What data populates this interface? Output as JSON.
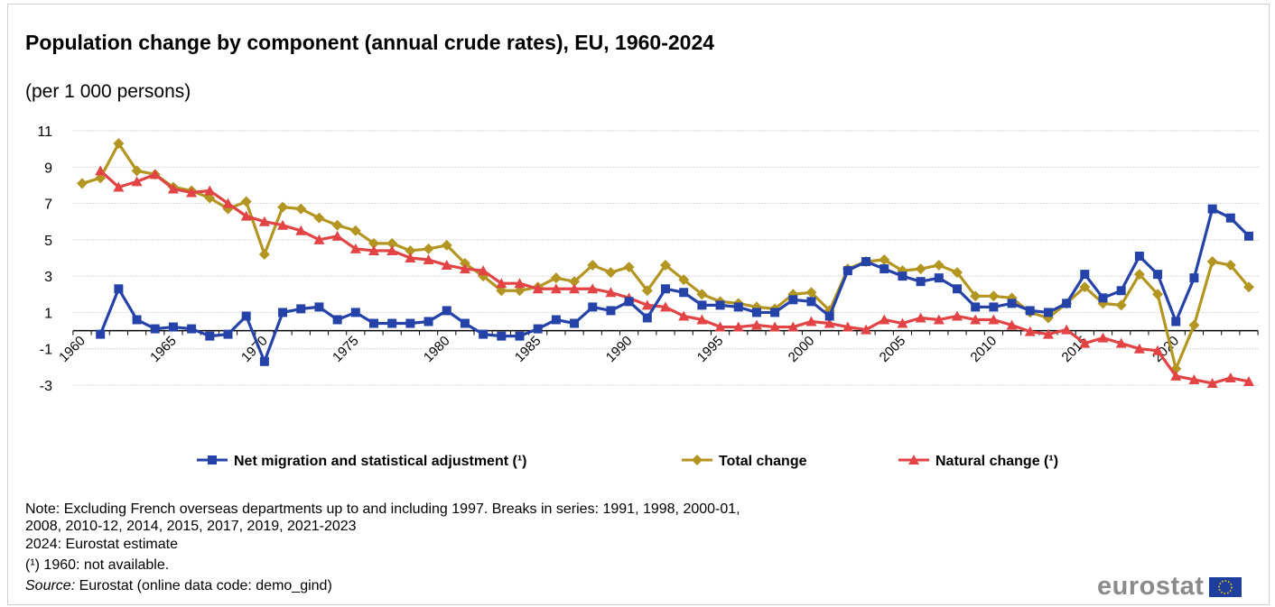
{
  "chart_data": {
    "type": "line",
    "title": "Population change by component (annual crude rates), EU, 1960-2024",
    "subtitle": "(per 1 000 persons)",
    "xlabel": "",
    "ylabel": "",
    "ylim": [
      -3,
      11
    ],
    "yticks": [
      11,
      9,
      7,
      5,
      3,
      1,
      -1,
      -3
    ],
    "xlim": [
      1960,
      2024
    ],
    "xticks": [
      1960,
      1965,
      1970,
      1975,
      1980,
      1985,
      1990,
      1995,
      2000,
      2005,
      2010,
      2015,
      2020
    ],
    "grid": true,
    "legend_position": "bottom",
    "series": [
      {
        "name": "Net migration and statistical adjustment (¹)",
        "color": "#2542a8",
        "marker": "square",
        "start": 1961,
        "values": [
          -0.2,
          2.3,
          0.6,
          0.1,
          0.2,
          0.1,
          -0.3,
          -0.2,
          0.8,
          -1.7,
          1.0,
          1.2,
          1.3,
          0.6,
          1.0,
          0.4,
          0.4,
          0.4,
          0.5,
          1.1,
          0.4,
          -0.2,
          -0.3,
          -0.3,
          0.1,
          0.6,
          0.4,
          1.3,
          1.1,
          1.6,
          0.7,
          2.3,
          2.1,
          1.4,
          1.4,
          1.3,
          1.0,
          1.0,
          1.7,
          1.6,
          0.8,
          3.3,
          3.8,
          3.4,
          3.0,
          2.7,
          2.9,
          2.3,
          1.3,
          1.3,
          1.5,
          1.1,
          1.0,
          1.5,
          3.1,
          1.8,
          2.2,
          4.1,
          3.1,
          0.5,
          2.9,
          6.7,
          6.2,
          5.2
        ]
      },
      {
        "name": "Total change",
        "color": "#b39521",
        "marker": "diamond",
        "start": 1960,
        "values": [
          8.1,
          8.4,
          10.3,
          8.8,
          8.6,
          7.9,
          7.7,
          7.3,
          6.7,
          7.1,
          4.2,
          6.8,
          6.7,
          6.2,
          5.8,
          5.5,
          4.8,
          4.8,
          4.4,
          4.5,
          4.7,
          3.7,
          3.0,
          2.2,
          2.2,
          2.4,
          2.9,
          2.7,
          3.6,
          3.2,
          3.5,
          2.2,
          3.6,
          2.8,
          2.0,
          1.6,
          1.5,
          1.3,
          1.2,
          2.0,
          2.1,
          1.1,
          3.4,
          3.8,
          3.9,
          3.3,
          3.4,
          3.6,
          3.2,
          1.9,
          1.9,
          1.8,
          1.0,
          0.7,
          1.5,
          2.4,
          1.5,
          1.4,
          3.1,
          2.0,
          -2.1,
          0.3,
          3.8,
          3.6,
          2.4
        ]
      },
      {
        "name": "Natural change (¹)",
        "color": "#e24446",
        "marker": "triangle",
        "start": 1961,
        "values": [
          8.8,
          7.9,
          8.2,
          8.6,
          7.8,
          7.6,
          7.7,
          7.0,
          6.3,
          6.0,
          5.8,
          5.5,
          5.0,
          5.2,
          4.5,
          4.4,
          4.4,
          4.0,
          3.9,
          3.6,
          3.4,
          3.3,
          2.6,
          2.6,
          2.3,
          2.3,
          2.3,
          2.3,
          2.1,
          1.8,
          1.4,
          1.3,
          0.8,
          0.6,
          0.2,
          0.2,
          0.3,
          0.2,
          0.2,
          0.5,
          0.4,
          0.2,
          0.05,
          0.6,
          0.4,
          0.7,
          0.6,
          0.8,
          0.6,
          0.6,
          0.3,
          -0.05,
          -0.2,
          0.05,
          -0.7,
          -0.4,
          -0.7,
          -1.0,
          -1.1,
          -2.5,
          -2.7,
          -2.9,
          -2.6,
          -2.8
        ]
      }
    ]
  },
  "notes": {
    "line1": "Note: Excluding French overseas departments up to and including 1997. Breaks in series: 1991, 1998, 2000-01,",
    "line2": "2008, 2010-12, 2014, 2015, 2017, 2019, 2021-2023",
    "line3": "2024: Eurostat estimate",
    "line4": "(¹) 1960: not available.",
    "source_label": "Source:",
    "source_text": " Eurostat (online data code: demo_gind)"
  },
  "logo": {
    "text": "eurostat"
  }
}
